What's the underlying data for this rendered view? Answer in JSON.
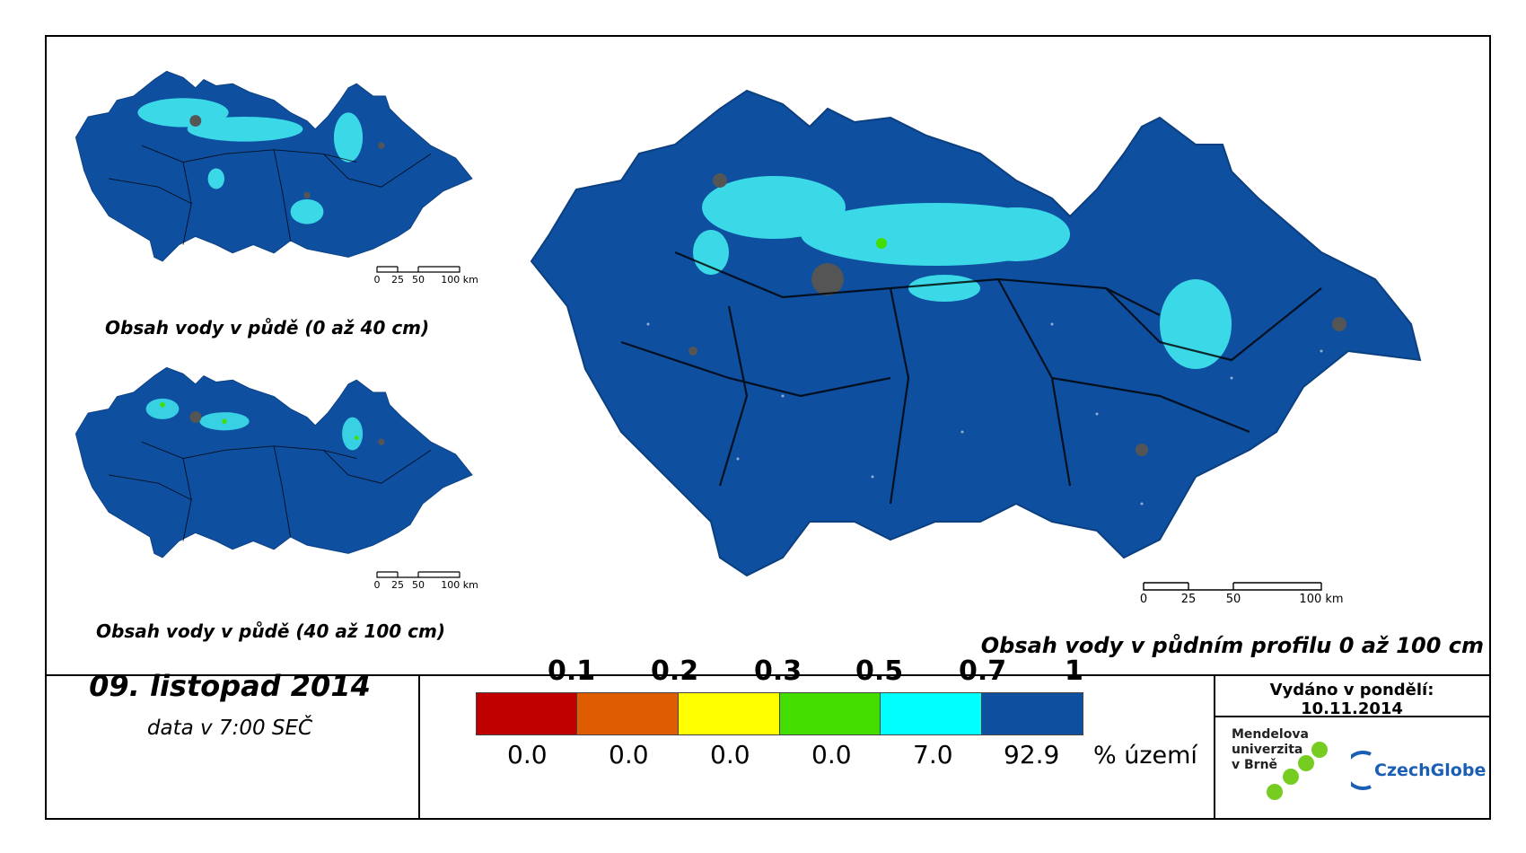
{
  "maps": {
    "small_top_caption": "Obsah vody v půdě (0 až 40 cm)",
    "small_bottom_caption": "Obsah vody v půdě (40 až 100 cm)",
    "large_caption": "Obsah vody v půdním profilu 0 až 100 cm",
    "scale_labels": [
      "0",
      "25",
      "50",
      "100 km"
    ]
  },
  "footer": {
    "date": "09. listopad 2014",
    "data_time": "data v 7:00 SEČ",
    "issued": "Vydáno v pondělí: 10.11.2014",
    "unit_label": "% území"
  },
  "legend": {
    "classes": [
      {
        "threshold": "0.1",
        "color": "#c00000",
        "percent": "0.0"
      },
      {
        "threshold": "0.2",
        "color": "#e05c00",
        "percent": "0.0"
      },
      {
        "threshold": "0.3",
        "color": "#ffff00",
        "percent": "0.0"
      },
      {
        "threshold": "0.5",
        "color": "#44dd00",
        "percent": "0.0"
      },
      {
        "threshold": "0.7",
        "color": "#00ffff",
        "percent": "7.0"
      },
      {
        "threshold": "1",
        "color": "#0e4fa0",
        "percent": "92.9"
      }
    ]
  },
  "logos": {
    "mendel_lines": [
      "Mendelova",
      "univerzita",
      "v Brně"
    ],
    "czechglobe": "CzechGlobe"
  },
  "colors": {
    "land": "#0e4fa0",
    "wet": "#40e8f0",
    "urban": "#555555",
    "border": "#000000"
  }
}
